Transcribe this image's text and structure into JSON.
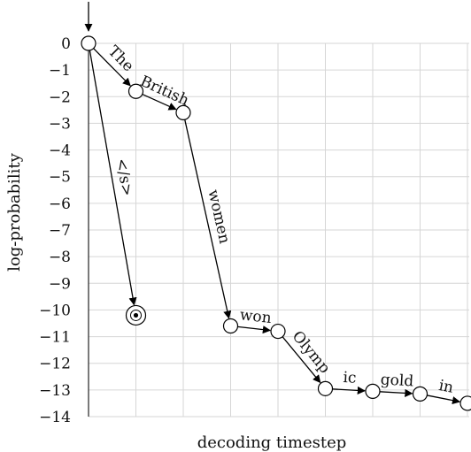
{
  "chart_data": {
    "type": "scatter",
    "title": "",
    "xlabel": "decoding timestep",
    "ylabel": "log-probability",
    "ylim": [
      -14,
      0
    ],
    "yticks": [
      0,
      -1,
      -2,
      -3,
      -4,
      -5,
      -6,
      -7,
      -8,
      -9,
      -10,
      -11,
      -12,
      -13,
      -14
    ],
    "ytick_labels": [
      "0",
      "−1",
      "−2",
      "−3",
      "−4",
      "−5",
      "−6",
      "−7",
      "−8",
      "−9",
      "−10",
      "−11",
      "−12",
      "−13",
      "−14"
    ],
    "xlim": [
      0,
      8.1
    ],
    "grid": true,
    "nodes": [
      {
        "id": "root",
        "x": 0,
        "y": 0
      },
      {
        "id": "n1",
        "x": 1,
        "y": -1.8
      },
      {
        "id": "n2",
        "x": 2,
        "y": -2.6
      },
      {
        "id": "end",
        "x": 1,
        "y": -10.2,
        "terminal": true
      },
      {
        "id": "n3",
        "x": 3,
        "y": -10.6
      },
      {
        "id": "n4",
        "x": 4,
        "y": -10.8
      },
      {
        "id": "n5",
        "x": 5,
        "y": -12.95
      },
      {
        "id": "n6",
        "x": 6,
        "y": -13.05
      },
      {
        "id": "n7",
        "x": 7,
        "y": -13.15
      },
      {
        "id": "n8",
        "x": 8,
        "y": -13.5
      }
    ],
    "edges": [
      {
        "from": "root",
        "to": "n1",
        "label": "The"
      },
      {
        "from": "n1",
        "to": "n2",
        "label": "British"
      },
      {
        "from": "root",
        "to": "end",
        "label": "</s>"
      },
      {
        "from": "n2",
        "to": "n3",
        "label": "women"
      },
      {
        "from": "n3",
        "to": "n4",
        "label": "won"
      },
      {
        "from": "n4",
        "to": "n5",
        "label": "Olymp"
      },
      {
        "from": "n5",
        "to": "n6",
        "label": "ic"
      },
      {
        "from": "n6",
        "to": "n7",
        "label": "gold"
      },
      {
        "from": "n7",
        "to": "n8",
        "label": "in"
      }
    ]
  }
}
